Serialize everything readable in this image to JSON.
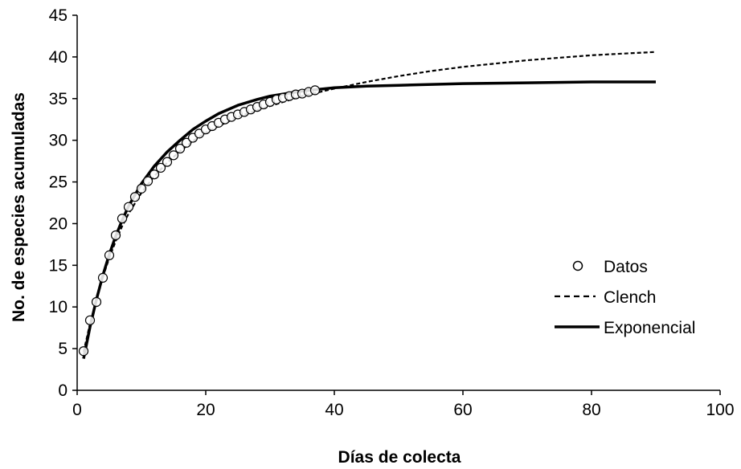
{
  "chart_data": {
    "type": "scatter",
    "title": "",
    "xlabel": "Días de colecta",
    "ylabel": "No. de especies acumuladas",
    "xlim": [
      0,
      100
    ],
    "ylim": [
      0,
      45
    ],
    "x_ticks": [
      0,
      20,
      40,
      60,
      80,
      100
    ],
    "y_ticks": [
      0,
      5,
      10,
      15,
      20,
      25,
      30,
      35,
      40,
      45
    ],
    "x_tick_labels": [
      "0",
      "20",
      "40",
      "60",
      "80",
      "100"
    ],
    "y_tick_labels": [
      "0",
      "5",
      "10",
      "15",
      "20",
      "25",
      "30",
      "35",
      "40",
      "45"
    ],
    "grid": false,
    "legend_position": "right",
    "series": [
      {
        "name": "Datos",
        "kind": "points",
        "marker": "open-circle",
        "x": [
          1,
          2,
          3,
          4,
          5,
          6,
          7,
          8,
          9,
          10,
          11,
          12,
          13,
          14,
          15,
          16,
          17,
          18,
          19,
          20,
          21,
          22,
          23,
          24,
          25,
          26,
          27,
          28,
          29,
          30,
          31,
          32,
          33,
          34,
          35,
          36,
          37
        ],
        "y": [
          4.7,
          8.4,
          10.6,
          13.5,
          16.2,
          18.6,
          20.6,
          22.0,
          23.2,
          24.2,
          25.1,
          25.9,
          26.7,
          27.4,
          28.2,
          29.0,
          29.7,
          30.3,
          30.8,
          31.3,
          31.7,
          32.1,
          32.5,
          32.8,
          33.1,
          33.4,
          33.7,
          34.0,
          34.3,
          34.6,
          34.9,
          35.1,
          35.3,
          35.5,
          35.6,
          35.8,
          36.0
        ]
      },
      {
        "name": "Clench",
        "kind": "line",
        "style": "dashed",
        "x": [
          1,
          2,
          3,
          4,
          5,
          6,
          7,
          8,
          10,
          12,
          14,
          16,
          18,
          20,
          22,
          25,
          28,
          30,
          35,
          40,
          45,
          50,
          55,
          60,
          65,
          70,
          75,
          80,
          85,
          90
        ],
        "y": [
          4.6,
          8.0,
          10.8,
          13.6,
          15.9,
          17.9,
          19.7,
          21.2,
          23.7,
          25.7,
          27.3,
          28.7,
          29.9,
          30.9,
          31.7,
          32.8,
          33.6,
          34.1,
          35.3,
          36.2,
          37.0,
          37.7,
          38.3,
          38.8,
          39.2,
          39.6,
          39.9,
          40.2,
          40.4,
          40.6
        ]
      },
      {
        "name": "Exponencial",
        "kind": "line",
        "style": "solid",
        "x": [
          1,
          2,
          3,
          4,
          5,
          6,
          7,
          8,
          10,
          12,
          14,
          16,
          18,
          20,
          22,
          25,
          28,
          30,
          35,
          40,
          45,
          50,
          60,
          70,
          80,
          90
        ],
        "y": [
          3.8,
          7.6,
          10.9,
          13.8,
          16.3,
          18.5,
          20.4,
          22.1,
          24.8,
          26.9,
          28.6,
          30.0,
          31.3,
          32.3,
          33.2,
          34.2,
          34.9,
          35.3,
          35.9,
          36.3,
          36.5,
          36.6,
          36.8,
          36.9,
          37.0,
          37.0
        ]
      }
    ]
  }
}
